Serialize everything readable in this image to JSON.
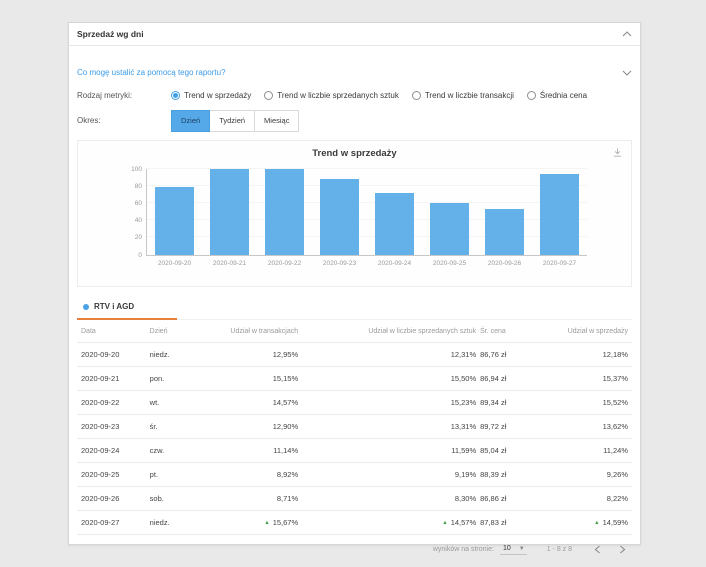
{
  "panel": {
    "title": "Sprzedaż wg dni",
    "help_link": "Co mogę ustalić za pomocą tego raportu?"
  },
  "controls": {
    "metric_label": "Rodzaj metryki:",
    "metric_options": [
      {
        "label": "Trend w sprzedaży",
        "selected": true
      },
      {
        "label": "Trend w liczbie sprzedanych sztuk",
        "selected": false
      },
      {
        "label": "Trend w liczbie transakcji",
        "selected": false
      },
      {
        "label": "Średnia cena",
        "selected": false
      }
    ],
    "period_label": "Okres:",
    "period_options": [
      {
        "label": "Dzień",
        "selected": true
      },
      {
        "label": "Tydzień",
        "selected": false
      },
      {
        "label": "Miesiąc",
        "selected": false
      }
    ]
  },
  "chart_data": {
    "type": "bar",
    "title": "Trend w sprzedaży",
    "categories": [
      "2020-09-20",
      "2020-09-21",
      "2020-09-22",
      "2020-09-23",
      "2020-09-24",
      "2020-09-25",
      "2020-09-26",
      "2020-09-27"
    ],
    "values": [
      78,
      99,
      100,
      88,
      72,
      60,
      53,
      94
    ],
    "xlabel": "",
    "ylabel": "",
    "ylim": [
      0,
      100
    ],
    "yticks": [
      0,
      20,
      40,
      60,
      80,
      100
    ],
    "grid": true,
    "legend_position": "none",
    "bar_color": "#64b0e8"
  },
  "table": {
    "tab_label": "RTV i AGD",
    "columns": [
      {
        "key": "data",
        "label": "Data",
        "align": "left"
      },
      {
        "key": "day",
        "label": "Dzień",
        "align": "left"
      },
      {
        "key": "transactions",
        "label": "Udział w transakcjach",
        "align": "right"
      },
      {
        "key": "units",
        "label": "Udział w liczbie sprzedanych sztuk",
        "align": "right"
      },
      {
        "key": "avg_price",
        "label": "Śr. cena",
        "align": "left"
      },
      {
        "key": "sales",
        "label": "Udział w sprzedaży",
        "align": "right"
      }
    ],
    "rows": [
      {
        "data": "2020-09-20",
        "day": "niedz.",
        "transactions": "12,95%",
        "units": "12,31%",
        "avg_price": "86,76 zł",
        "sales": "12,18%"
      },
      {
        "data": "2020-09-21",
        "day": "pon.",
        "transactions": "15,15%",
        "units": "15,50%",
        "avg_price": "86,94 zł",
        "sales": "15,37%"
      },
      {
        "data": "2020-09-22",
        "day": "wt.",
        "transactions": "14,57%",
        "units": "15,23%",
        "avg_price": "89,34 zł",
        "sales": "15,52%"
      },
      {
        "data": "2020-09-23",
        "day": "śr.",
        "transactions": "12,90%",
        "units": "13,31%",
        "avg_price": "89,72 zł",
        "sales": "13,62%"
      },
      {
        "data": "2020-09-24",
        "day": "czw.",
        "transactions": "11,14%",
        "units": "11,59%",
        "avg_price": "85,04 zł",
        "sales": "11,24%"
      },
      {
        "data": "2020-09-25",
        "day": "pt.",
        "transactions": "8,92%",
        "units": "9,19%",
        "avg_price": "88,39 zł",
        "sales": "9,26%"
      },
      {
        "data": "2020-09-26",
        "day": "sob.",
        "transactions": "8,71%",
        "units": "8,30%",
        "avg_price": "86,86 zł",
        "sales": "8,22%"
      },
      {
        "data": "2020-09-27",
        "day": "niedz.",
        "transactions": "15,67%",
        "units": "14,57%",
        "avg_price": "87,83 zł",
        "sales": "14,59%",
        "up": [
          "transactions",
          "units",
          "sales"
        ]
      }
    ],
    "footer": {
      "per_page_label": "wyników na stronie:",
      "per_page_value": "10",
      "range_text": "1 - 8 z 8"
    }
  },
  "colors": {
    "bar_blue": "#64b0e8",
    "accent_blue": "#42a0e8",
    "link_blue": "#3d9be8",
    "tab_underline_orange": "#e8803d",
    "positive_green": "#43a047"
  }
}
